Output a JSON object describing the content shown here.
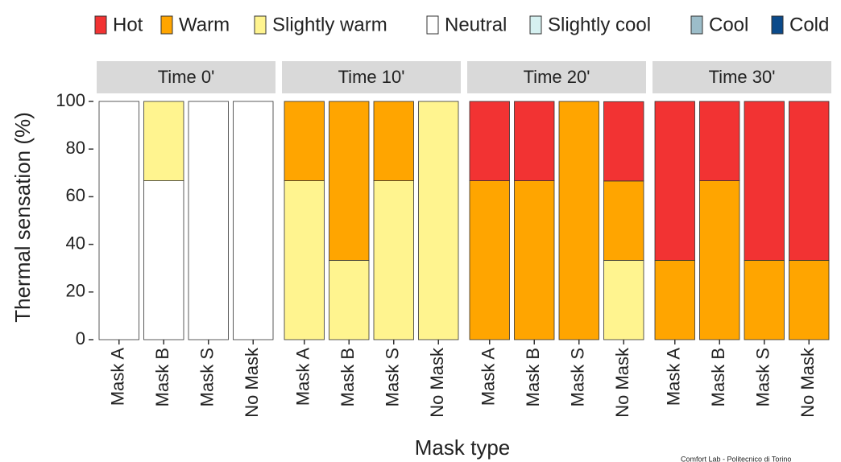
{
  "chart_data": {
    "type": "bar",
    "stacked": true,
    "ylabel": "Thermal sensation (%)",
    "xlabel": "Mask type",
    "annotation": "Comfort Lab - Politecnico di Torino",
    "ylim": [
      0,
      100
    ],
    "yticks": [
      0,
      20,
      40,
      60,
      80,
      100
    ],
    "facets": [
      "Time 0'",
      "Time 10'",
      "Time 20'",
      "Time 30'"
    ],
    "categories": [
      "Mask A",
      "Mask B",
      "Mask S",
      "No Mask"
    ],
    "series": [
      {
        "name": "Hot",
        "color": "#f23333",
        "values": [
          [
            0,
            0,
            0,
            0
          ],
          [
            0,
            0,
            0,
            0
          ],
          [
            33.3,
            33.3,
            0,
            33.3
          ],
          [
            66.7,
            33.3,
            66.7,
            66.7
          ]
        ]
      },
      {
        "name": "Warm",
        "color": "#ffa500",
        "values": [
          [
            0,
            0,
            0,
            0
          ],
          [
            33.3,
            66.7,
            33.3,
            0
          ],
          [
            66.7,
            66.7,
            100,
            33.3
          ],
          [
            33.3,
            66.7,
            33.3,
            33.3
          ]
        ]
      },
      {
        "name": "Slightly warm",
        "color": "#fff48f",
        "values": [
          [
            0,
            33.3,
            0,
            0
          ],
          [
            66.7,
            33.3,
            66.7,
            100
          ],
          [
            0,
            0,
            0,
            33.3
          ],
          [
            0,
            0,
            0,
            0
          ]
        ]
      },
      {
        "name": "Neutral",
        "color": "#ffffff",
        "values": [
          [
            100,
            66.7,
            100,
            100
          ],
          [
            0,
            0,
            0,
            0
          ],
          [
            0,
            0,
            0,
            0
          ],
          [
            0,
            0,
            0,
            0
          ]
        ]
      },
      {
        "name": "Slightly cool",
        "color": "#d6f1f1",
        "values": [
          [
            0,
            0,
            0,
            0
          ],
          [
            0,
            0,
            0,
            0
          ],
          [
            0,
            0,
            0,
            0
          ],
          [
            0,
            0,
            0,
            0
          ]
        ]
      },
      {
        "name": "Cool",
        "color": "#9cbdc9",
        "values": [
          [
            0,
            0,
            0,
            0
          ],
          [
            0,
            0,
            0,
            0
          ],
          [
            0,
            0,
            0,
            0
          ],
          [
            0,
            0,
            0,
            0
          ]
        ]
      },
      {
        "name": "Cold",
        "color": "#0b4a8a",
        "values": [
          [
            0,
            0,
            0,
            0
          ],
          [
            0,
            0,
            0,
            0
          ],
          [
            0,
            0,
            0,
            0
          ],
          [
            0,
            0,
            0,
            0
          ]
        ]
      }
    ]
  }
}
